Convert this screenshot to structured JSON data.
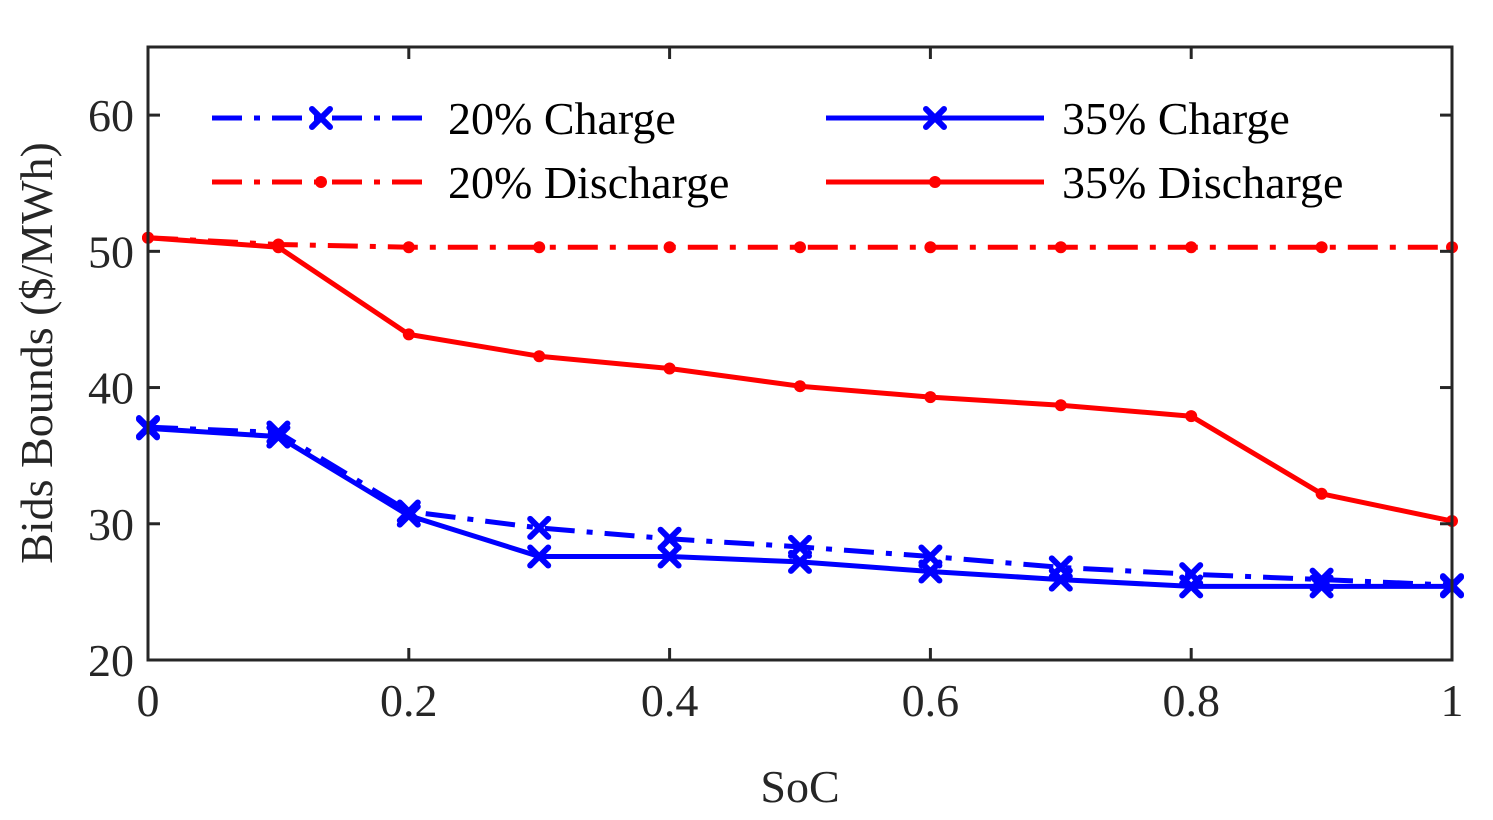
{
  "chart_data": {
    "type": "line",
    "xlabel": "SoC",
    "ylabel": "Bids Bounds ($/MWh)",
    "xlim": [
      0,
      1
    ],
    "ylim": [
      20,
      65
    ],
    "xticks": [
      0,
      0.2,
      0.4,
      0.6,
      0.8,
      1
    ],
    "xtick_labels": [
      "0",
      "0.2",
      "0.4",
      "0.6",
      "0.8",
      "1"
    ],
    "yticks": [
      20,
      30,
      40,
      50,
      60
    ],
    "ytick_labels": [
      "20",
      "30",
      "40",
      "50",
      "60"
    ],
    "grid": false,
    "legend_position": "top",
    "x": [
      0,
      0.1,
      0.2,
      0.3,
      0.4,
      0.5,
      0.6,
      0.7,
      0.8,
      0.9,
      1
    ],
    "series": [
      {
        "name": "20% Charge",
        "color": "#0000ff",
        "line_style": "dashdot",
        "marker": "x",
        "values": [
          37.1,
          36.7,
          30.9,
          29.7,
          28.9,
          28.3,
          27.6,
          26.8,
          26.3,
          25.9,
          25.5
        ]
      },
      {
        "name": "35% Charge",
        "color": "#0000ff",
        "line_style": "solid",
        "marker": "x",
        "values": [
          37.0,
          36.4,
          30.6,
          27.6,
          27.6,
          27.2,
          26.5,
          25.9,
          25.4,
          25.4,
          25.4
        ]
      },
      {
        "name": "20% Discharge",
        "color": "#ff0000",
        "line_style": "dashdot",
        "marker": "dot",
        "values": [
          51.0,
          50.5,
          50.3,
          50.3,
          50.3,
          50.3,
          50.3,
          50.3,
          50.3,
          50.3,
          50.3
        ]
      },
      {
        "name": "35% Discharge",
        "color": "#ff0000",
        "line_style": "solid",
        "marker": "dot",
        "values": [
          51.0,
          50.3,
          43.9,
          42.3,
          41.4,
          40.1,
          39.3,
          38.7,
          37.9,
          32.2,
          30.2
        ]
      }
    ],
    "legend_order": [
      "20% Charge",
      "35% Charge",
      "20% Discharge",
      "35% Discharge"
    ]
  }
}
